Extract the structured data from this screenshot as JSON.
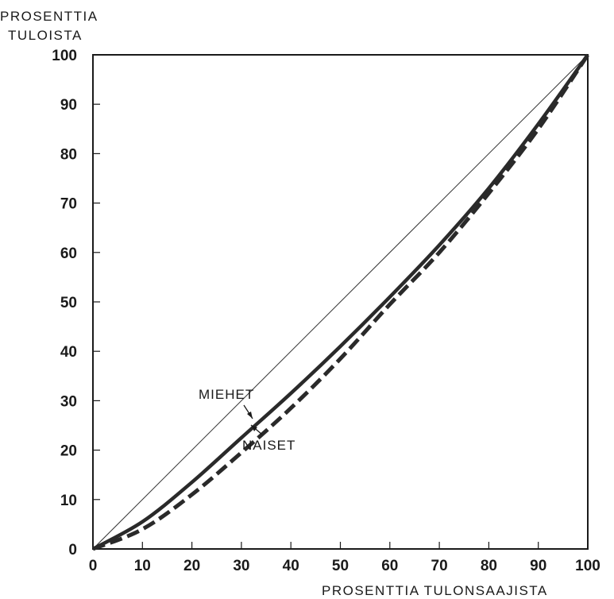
{
  "chart_data": {
    "type": "line",
    "ylabel": [
      "PROSENTTIA",
      "TULOISTA"
    ],
    "xlabel": "PROSENTTIA TULONSAAJISTA",
    "xlim": [
      0,
      100
    ],
    "ylim": [
      0,
      100
    ],
    "x_ticks": [
      "0",
      "10",
      "20",
      "30",
      "40",
      "50",
      "60",
      "70",
      "80",
      "90",
      "100"
    ],
    "y_ticks": [
      "0",
      "10",
      "20",
      "30",
      "40",
      "50",
      "60",
      "70",
      "80",
      "90",
      "100"
    ],
    "grid": false,
    "series": [
      {
        "name": "",
        "style": "thin-solid",
        "color": "#333333",
        "x": [
          0,
          100
        ],
        "y": [
          0,
          100
        ]
      },
      {
        "name": "MIEHET",
        "style": "thick-solid",
        "color": "#2a2a2a",
        "x": [
          0,
          10,
          20,
          30,
          40,
          50,
          60,
          70,
          80,
          90,
          100
        ],
        "y": [
          0,
          5.5,
          13.5,
          22.5,
          31.5,
          41,
          51,
          61.5,
          73,
          86,
          100
        ]
      },
      {
        "name": "NAISET",
        "style": "dashed",
        "color": "#2a2a2a",
        "x": [
          0,
          10,
          20,
          30,
          40,
          50,
          60,
          70,
          80,
          90,
          100
        ],
        "y": [
          0,
          4,
          11,
          19.5,
          28.5,
          38.5,
          49.5,
          60,
          72,
          85,
          100
        ]
      }
    ],
    "annotations": [
      {
        "text": "MIEHET",
        "series": "MIEHET"
      },
      {
        "text": "NAISET",
        "series": "NAISET"
      }
    ]
  }
}
